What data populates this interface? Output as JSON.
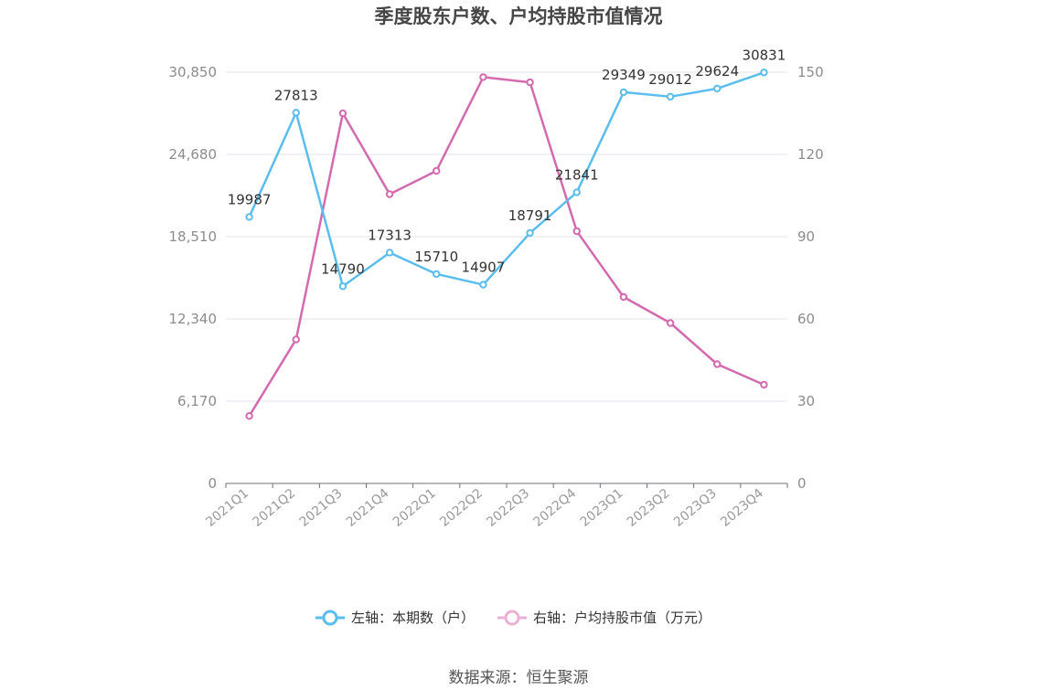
{
  "chart_data": {
    "type": "line",
    "title": "季度股东户数、户均持股市值情况",
    "categories": [
      "2021Q1",
      "2021Q2",
      "2021Q3",
      "2021Q4",
      "2022Q1",
      "2022Q2",
      "2022Q3",
      "2022Q4",
      "2023Q1",
      "2023Q2",
      "2023Q3",
      "2023Q4"
    ],
    "left_axis": {
      "ticks": [
        "0",
        "6,170",
        "12,340",
        "18,510",
        "24,680",
        "30,850"
      ],
      "ylim": [
        0,
        30850
      ]
    },
    "right_axis": {
      "ticks": [
        "0",
        "30",
        "60",
        "90",
        "120",
        "150"
      ],
      "ylim": [
        0,
        150
      ]
    },
    "grid": true,
    "legend_position": "bottom",
    "series": [
      {
        "name": "左轴：本期数（户）",
        "axis": "left",
        "color": "#5bbdee",
        "values": [
          19987,
          27813,
          14790,
          17313,
          15710,
          14907,
          18791,
          21841,
          29349,
          29012,
          29624,
          30831
        ],
        "labels": [
          "19987",
          "27813",
          "14790",
          "17313",
          "15710",
          "14907",
          "18791",
          "21841",
          "29349",
          "29012",
          "29624",
          "30831"
        ]
      },
      {
        "name": "右轴：户均持股市值（万元）",
        "axis": "right",
        "color": "#d46aaf",
        "values": [
          24.6,
          52.5,
          135.0,
          105.5,
          114.0,
          148.2,
          146.3,
          92.0,
          68.0,
          58.5,
          43.5,
          36.0
        ]
      }
    ]
  },
  "source": "数据来源：恒生聚源"
}
